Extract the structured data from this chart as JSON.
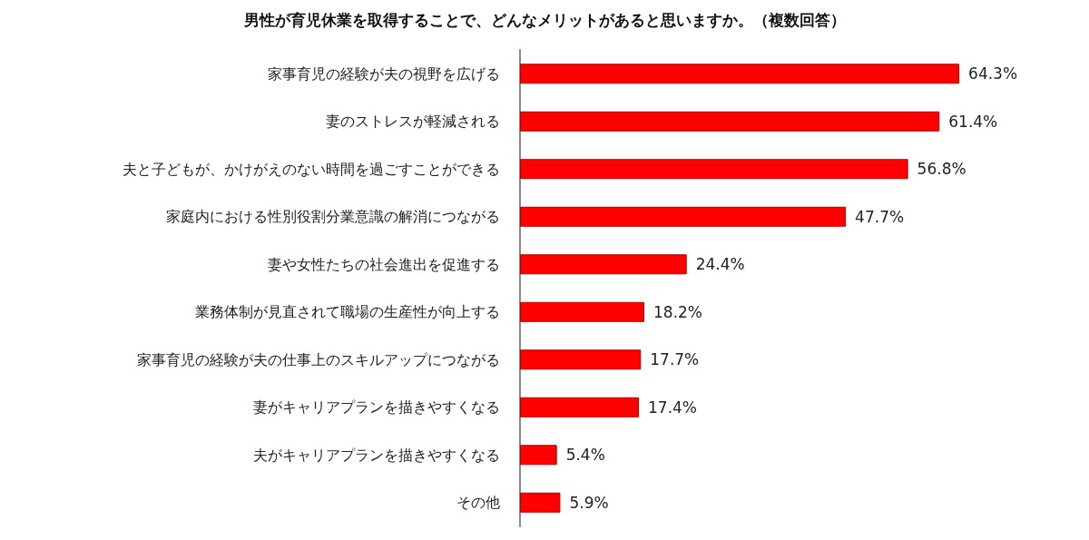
{
  "chart_data": {
    "type": "bar",
    "orientation": "horizontal",
    "title": "男性が育児休業を取得することで、どんなメリットがあると思いますか。（複数回答）",
    "categories": [
      "家事育児の経験が夫の視野を広げる",
      "妻のストレスが軽減される",
      "夫と子どもが、かけがえのない時間を過ごすことができる",
      "家庭内における性別役割分業意識の解消につながる",
      "妻や女性たちの社会進出を促進する",
      "業務体制が見直されて職場の生産性が向上する",
      "家事育児の経験が夫の仕事上のスキルアップにつながる",
      "妻がキャリアプランを描きやすくなる",
      "夫がキャリアプランを描きやすくなる",
      "その他"
    ],
    "values": [
      64.3,
      61.4,
      56.8,
      47.7,
      24.4,
      18.2,
      17.7,
      17.4,
      5.4,
      5.9
    ],
    "value_labels": [
      "64.3%",
      "61.4%",
      "56.8%",
      "47.7%",
      "24.4%",
      "18.2%",
      "17.7%",
      "17.4%",
      "5.4%",
      "5.9%"
    ],
    "color": "#ff0000"
  }
}
